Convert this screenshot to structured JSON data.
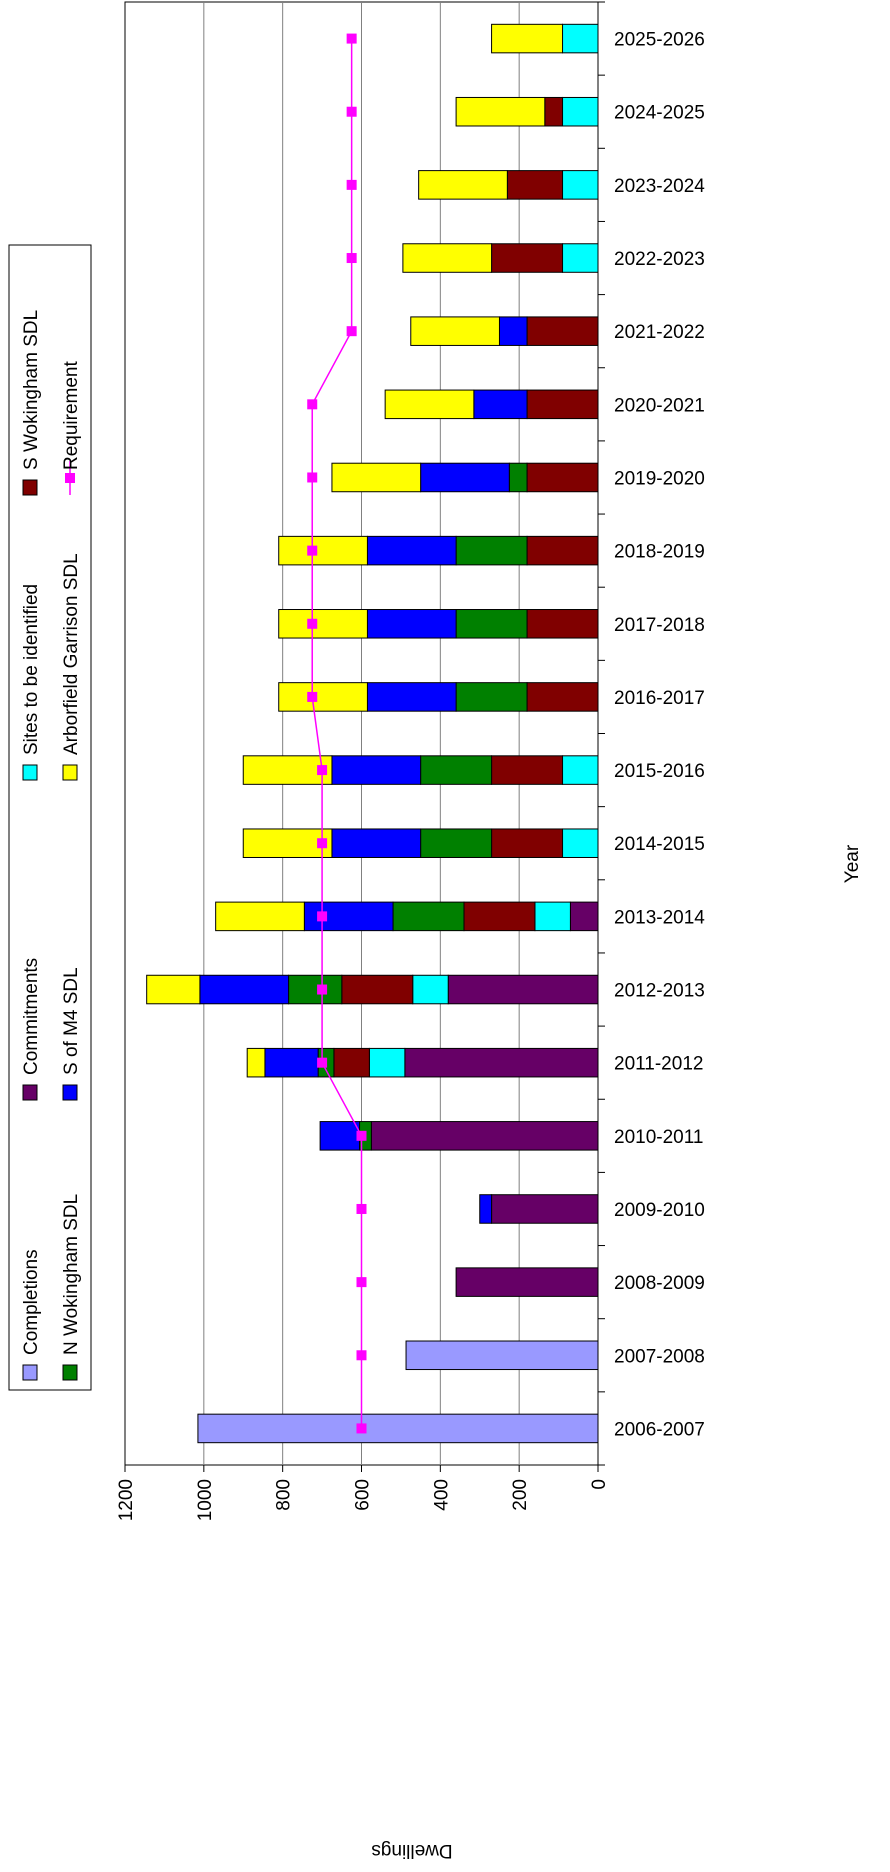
{
  "chart_data": {
    "type": "bar",
    "orientation": "rotated-stacked-column",
    "title": "",
    "xlabel": "Year",
    "ylabel": "Dwellings",
    "ylim": [
      0,
      1200
    ],
    "yticks": [
      0,
      200,
      400,
      600,
      800,
      1000,
      1200
    ],
    "grid": true,
    "legend_position": "left",
    "categories": [
      "2006-2007",
      "2007-2008",
      "2008-2009",
      "2009-2010",
      "2010-2011",
      "2011-2012",
      "2012-2013",
      "2013-2014",
      "2014-2015",
      "2015-2016",
      "2016-2017",
      "2017-2018",
      "2018-2019",
      "2019-2020",
      "2020-2021",
      "2021-2022",
      "2022-2023",
      "2023-2024",
      "2024-2025",
      "2025-2026"
    ],
    "series": [
      {
        "name": "Completions",
        "color": "#9999ff",
        "values": [
          1015,
          487,
          0,
          0,
          0,
          0,
          0,
          0,
          0,
          0,
          0,
          0,
          0,
          0,
          0,
          0,
          0,
          0,
          0,
          0
        ]
      },
      {
        "name": "Commitments",
        "color": "#660066",
        "values": [
          0,
          0,
          360,
          270,
          575,
          490,
          380,
          70,
          0,
          0,
          0,
          0,
          0,
          0,
          0,
          0,
          0,
          0,
          0,
          0
        ]
      },
      {
        "name": "Sites to be identified",
        "color": "#00ffff",
        "values": [
          0,
          0,
          0,
          0,
          0,
          90,
          90,
          90,
          90,
          90,
          0,
          0,
          0,
          0,
          0,
          0,
          90,
          90,
          90,
          90
        ]
      },
      {
        "name": "S Wokingham SDL",
        "color": "#800000",
        "values": [
          0,
          0,
          0,
          0,
          0,
          90,
          180,
          180,
          180,
          180,
          180,
          180,
          180,
          180,
          180,
          180,
          180,
          140,
          45,
          0
        ]
      },
      {
        "name": "N Wokingham SDL",
        "color": "#008000",
        "values": [
          0,
          0,
          0,
          0,
          30,
          40,
          135,
          180,
          180,
          180,
          180,
          180,
          180,
          45,
          0,
          0,
          0,
          0,
          0,
          0
        ]
      },
      {
        "name": "S of M4 SDL",
        "color": "#0000ff",
        "values": [
          0,
          0,
          0,
          30,
          100,
          135,
          225,
          225,
          225,
          225,
          225,
          225,
          225,
          225,
          135,
          70,
          0,
          0,
          0,
          0
        ]
      },
      {
        "name": "Arborfield Garrison SDL",
        "color": "#ffff00",
        "values": [
          0,
          0,
          0,
          0,
          0,
          45,
          135,
          225,
          225,
          225,
          225,
          225,
          225,
          225,
          225,
          225,
          225,
          225,
          225,
          180
        ]
      }
    ],
    "line_series": {
      "name": "Requirement",
      "color": "#ff00ff",
      "values": [
        600,
        600,
        600,
        600,
        600,
        700,
        700,
        700,
        700,
        700,
        725,
        725,
        725,
        725,
        725,
        625,
        625,
        625,
        625,
        625
      ]
    }
  }
}
